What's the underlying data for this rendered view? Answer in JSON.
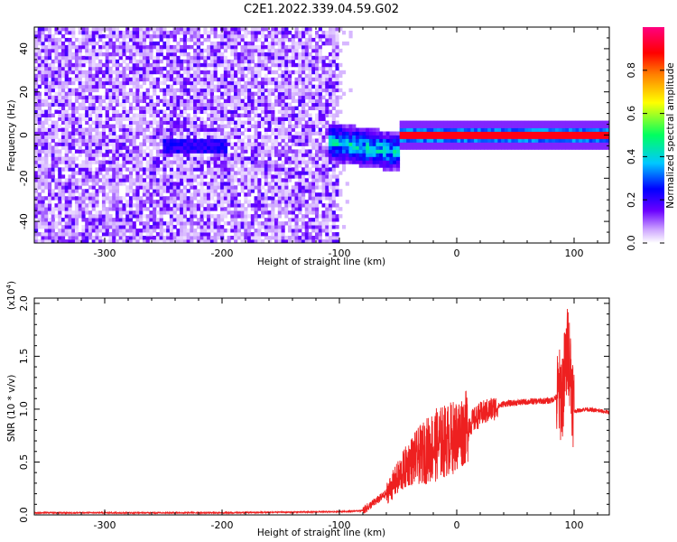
{
  "title": "C2E1.2022.339.04.59.G02",
  "chart_data": [
    {
      "type": "heatmap",
      "xlabel": "Height of straight line (km)",
      "ylabel": "Frequency (Hz)",
      "xlim": [
        -360,
        130
      ],
      "ylim": [
        -50,
        50
      ],
      "xticks": [
        -300,
        -200,
        -100,
        0,
        100
      ],
      "yticks": [
        -40,
        -20,
        0,
        20,
        40
      ],
      "colorbar": {
        "label": "Normalized spectral amplitude",
        "range": [
          0.0,
          1.0
        ],
        "ticks": [
          "0.0",
          "0.2",
          "0.4",
          "0.6",
          "0.8"
        ],
        "colormap": [
          "#ffffff",
          "#cfa8ff",
          "#6a00ff",
          "#0000ff",
          "#00c8ff",
          "#00ff60",
          "#ffff00",
          "#ff8000",
          "#ff0000",
          "#ff0080"
        ]
      },
      "features": [
        {
          "description": "broadband noise",
          "x_range": [
            -360,
            -100
          ],
          "freq_range": [
            -50,
            50
          ],
          "amplitude": 0.1
        },
        {
          "description": "signal onset",
          "x_range": [
            -110,
            -50
          ],
          "freq_center": 0,
          "amplitude": 0.45
        },
        {
          "description": "carrier line",
          "x_range": [
            -50,
            130
          ],
          "freq_center": 0,
          "amplitude": 0.9
        }
      ]
    },
    {
      "type": "line",
      "xlabel": "Height of straight line (km)",
      "ylabel": "SNR (10 * v/v)",
      "y_multiplier": "(x10",
      "y_exponent": "4",
      "xlim": [
        -360,
        130
      ],
      "ylim": [
        0,
        2.05
      ],
      "xticks": [
        -300,
        -200,
        -100,
        0,
        100
      ],
      "yticks": [
        "0.0",
        "0.5",
        "1.0",
        "1.5",
        "2.0"
      ],
      "color": "#ee2020",
      "x": [
        -360,
        -300,
        -200,
        -100,
        -80,
        -60,
        -40,
        -20,
        0,
        20,
        40,
        60,
        80,
        90,
        95,
        100,
        110,
        130
      ],
      "values": [
        0.02,
        0.02,
        0.02,
        0.03,
        0.04,
        0.2,
        0.5,
        0.65,
        0.75,
        0.95,
        1.05,
        1.07,
        1.08,
        1.15,
        1.6,
        0.98,
        1.0,
        0.97
      ]
    }
  ]
}
